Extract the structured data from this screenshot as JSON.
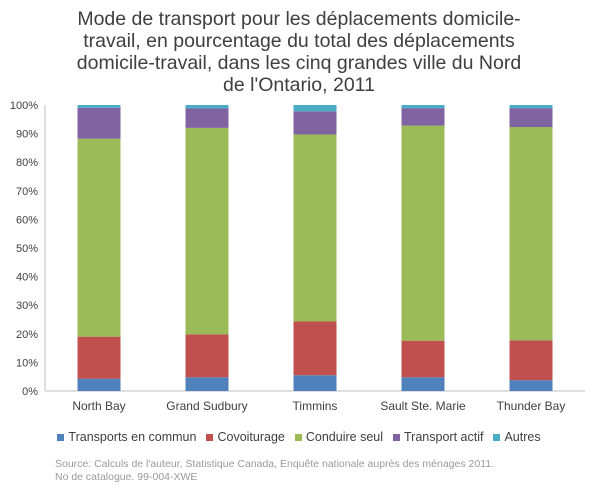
{
  "chart_data": {
    "type": "bar",
    "stacked": true,
    "title_lines": [
      "Mode de transport pour les déplacements domicile-",
      "travail, en pourcentage du total des déplacements",
      "domicile-travail, dans les cinq grandes ville du Nord",
      "de l'Ontario, 2011"
    ],
    "categories": [
      "North Bay",
      "Grand Sudbury",
      "Timmins",
      "Sault Ste. Marie",
      "Thunder Bay"
    ],
    "series": [
      {
        "name": "Transports en commun",
        "color": "#4f81bd",
        "values": [
          4.3,
          4.8,
          5.5,
          4.8,
          3.8
        ]
      },
      {
        "name": "Covoiturage",
        "color": "#c0504d",
        "values": [
          14.7,
          15.0,
          18.8,
          12.8,
          13.9
        ]
      },
      {
        "name": "Conduire seul",
        "color": "#9bbb59",
        "values": [
          69.2,
          72.2,
          65.4,
          75.2,
          74.6
        ]
      },
      {
        "name": "Transport actif",
        "color": "#8064a2",
        "values": [
          10.8,
          6.8,
          8.1,
          6.1,
          6.6
        ]
      },
      {
        "name": "Autres",
        "color": "#4bacc6",
        "values": [
          1.0,
          1.2,
          2.2,
          1.1,
          1.1
        ]
      }
    ],
    "y_ticks": [
      "0%",
      "10%",
      "20%",
      "30%",
      "40%",
      "50%",
      "60%",
      "70%",
      "80%",
      "90%",
      "100%"
    ],
    "ylim": [
      0,
      100
    ],
    "grid": false,
    "legend_position": "bottom"
  },
  "source_lines": [
    "Source: Calculs de l'auteur, Statistique Canada, Enquête nationale auprès des ménages 2011.",
    "No de catalogue. 99-004-XWE"
  ]
}
